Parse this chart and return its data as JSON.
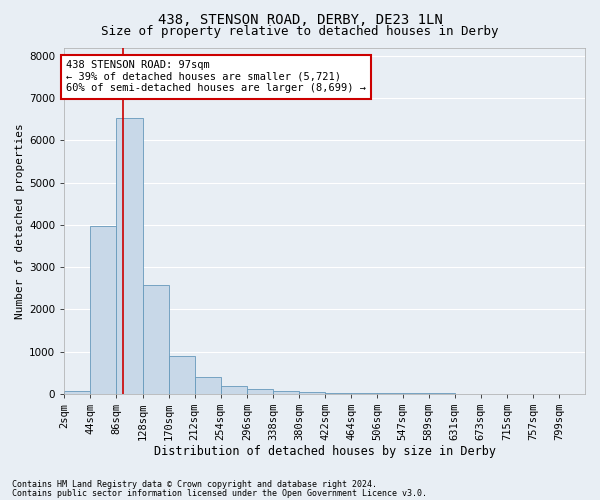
{
  "title": "438, STENSON ROAD, DERBY, DE23 1LN",
  "subtitle": "Size of property relative to detached houses in Derby",
  "xlabel": "Distribution of detached houses by size in Derby",
  "ylabel": "Number of detached properties",
  "footnote1": "Contains HM Land Registry data © Crown copyright and database right 2024.",
  "footnote2": "Contains public sector information licensed under the Open Government Licence v3.0.",
  "annotation_line1": "438 STENSON ROAD: 97sqm",
  "annotation_line2": "← 39% of detached houses are smaller (5,721)",
  "annotation_line3": "60% of semi-detached houses are larger (8,699) →",
  "bar_edges": [
    2,
    44,
    86,
    128,
    170,
    212,
    254,
    296,
    338,
    380,
    422,
    464,
    506,
    547,
    589,
    631,
    673,
    715,
    757,
    799,
    841
  ],
  "bar_heights": [
    55,
    3980,
    6530,
    2580,
    900,
    400,
    175,
    110,
    65,
    50,
    30,
    20,
    15,
    10,
    8,
    5,
    4,
    3,
    2,
    1
  ],
  "bar_color": "#c8d8e8",
  "bar_edge_color": "#6699bb",
  "vline_color": "#cc0000",
  "vline_x": 97,
  "box_color": "#cc0000",
  "ylim": [
    0,
    8200
  ],
  "yticks": [
    0,
    1000,
    2000,
    3000,
    4000,
    5000,
    6000,
    7000,
    8000
  ],
  "bg_color": "#e8eef4",
  "grid_color": "#ffffff",
  "title_fontsize": 10,
  "subtitle_fontsize": 9,
  "xlabel_fontsize": 8.5,
  "ylabel_fontsize": 8,
  "tick_fontsize": 7.5,
  "annot_fontsize": 7.5,
  "footnote_fontsize": 6
}
